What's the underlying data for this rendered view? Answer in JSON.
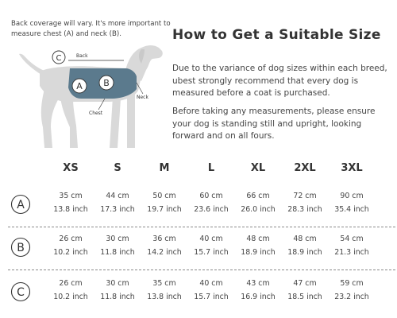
{
  "note": "Back coverage will vary. It's more important to measure chest (A) and neck (B).",
  "title": "How to Get a Suitable Size",
  "paragraphs": [
    "Due to the variance of dog sizes within each breed, ubest strongly recommend that every dog is measured before a coat is purchased.",
    "Before taking any measurements, please ensure your dog is standing still and upright, looking forward and on all fours."
  ],
  "diagram": {
    "back_label": "Back",
    "neck_label": "Neck",
    "chest_label": "Chest",
    "marker_a": "A",
    "marker_b": "B",
    "marker_c": "C",
    "coat_color": "#5b7a8d",
    "dog_color": "#d9d9d9"
  },
  "sizes": [
    "XS",
    "S",
    "M",
    "L",
    "XL",
    "2XL",
    "3XL"
  ],
  "rows": [
    {
      "marker": "A",
      "cm": [
        "35 cm",
        "44 cm",
        "50 cm",
        "60 cm",
        "66 cm",
        "72 cm",
        "90 cm"
      ],
      "inch": [
        "13.8 inch",
        "17.3 inch",
        "19.7 inch",
        "23.6 inch",
        "26.0 inch",
        "28.3 inch",
        "35.4 inch"
      ]
    },
    {
      "marker": "B",
      "cm": [
        "26 cm",
        "30 cm",
        "36 cm",
        "40 cm",
        "48 cm",
        "48 cm",
        "54 cm"
      ],
      "inch": [
        "10.2 inch",
        "11.8 inch",
        "14.2 inch",
        "15.7 inch",
        "18.9 inch",
        "18.9 inch",
        "21.3 inch"
      ]
    },
    {
      "marker": "C",
      "cm": [
        "26 cm",
        "30 cm",
        "35 cm",
        "40 cm",
        "43 cm",
        "47 cm",
        "59 cm"
      ],
      "inch": [
        "10.2 inch",
        "11.8 inch",
        "13.8 inch",
        "15.7 inch",
        "16.9 inch",
        "18.5 inch",
        "23.2 inch"
      ]
    }
  ]
}
